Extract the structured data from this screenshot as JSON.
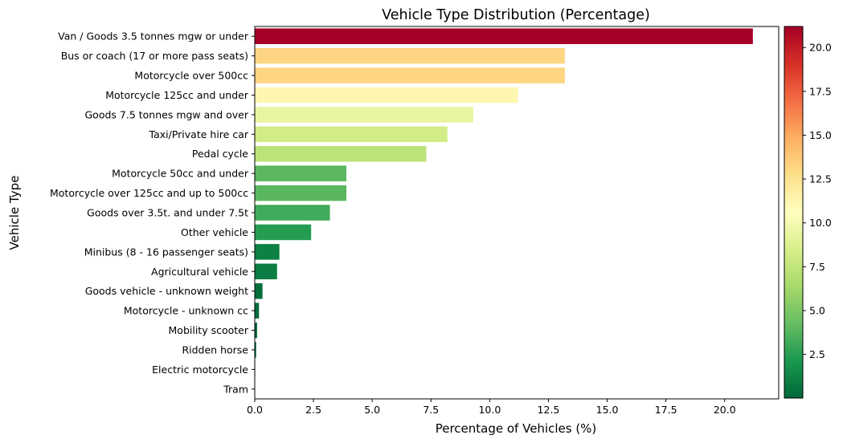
{
  "chart_data": {
    "type": "bar",
    "orientation": "horizontal",
    "title": "Vehicle Type Distribution (Percentage)",
    "xlabel": "Percentage of Vehicles (%)",
    "ylabel": "Vehicle Type",
    "xlim": [
      0,
      22.3
    ],
    "xticks": [
      0.0,
      2.5,
      5.0,
      7.5,
      10.0,
      12.5,
      15.0,
      17.5,
      20.0
    ],
    "categories": [
      "Van / Goods 3.5 tonnes mgw or under",
      "Bus or coach (17 or more pass seats)",
      "Motorcycle over 500cc",
      "Motorcycle 125cc and under",
      "Goods 7.5 tonnes mgw and over",
      "Taxi/Private hire car",
      "Pedal cycle",
      "Motorcycle 50cc and under",
      "Motorcycle over 125cc and up to 500cc",
      "Goods over 3.5t. and under 7.5t",
      "Other vehicle",
      "Minibus (8 - 16 passenger seats)",
      "Agricultural vehicle",
      "Goods vehicle - unknown weight",
      "Motorcycle - unknown cc",
      "Mobility scooter",
      "Ridden horse",
      "Electric motorcycle",
      "Tram"
    ],
    "values": [
      21.2,
      13.2,
      13.2,
      11.2,
      9.3,
      8.2,
      7.3,
      3.9,
      3.9,
      3.2,
      2.4,
      1.05,
      0.95,
      0.33,
      0.18,
      0.1,
      0.06,
      0.02,
      0.01
    ],
    "colormap": "RdYlGn_r",
    "colorbar": {
      "range": [
        0.01,
        21.2
      ],
      "ticks": [
        2.5,
        5.0,
        7.5,
        10.0,
        12.5,
        15.0,
        17.5,
        20.0
      ]
    },
    "grid": false,
    "legend": "none"
  }
}
